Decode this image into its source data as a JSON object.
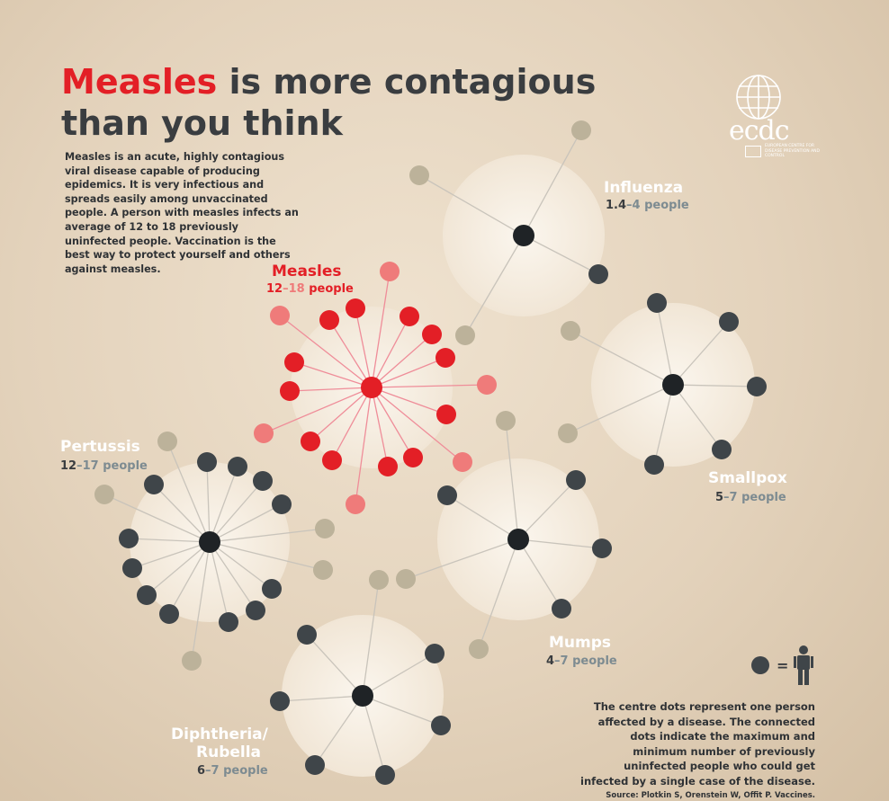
{
  "title": {
    "highlight": "Measles",
    "rest_line1": " is more contagious",
    "line2": "than you think"
  },
  "intro": "Measles is an acute, highly contagious viral disease capable of producing epidemics. It is very infectious and spreads easily among unvaccinated people. A person with measles infects an average of 12 to 18 previously uninfected people. Vaccination is the best way to protect yourself and others against measles.",
  "logo": {
    "name": "ecdc",
    "subtitle": "EUROPEAN CENTRE FOR DISEASE PREVENTION AND CONTROL",
    "icon": "globe-icon"
  },
  "colors": {
    "measles_red": "#e31f26",
    "measles_light": "#ef7b7a",
    "dark_dot": "#3f4549",
    "light_dot": "#bcb29a",
    "center_dot": "#1f2326",
    "disc": "#f6ede1",
    "gray_text": "#7d8b91"
  },
  "diseases": [
    {
      "id": "measles",
      "name": "Measles",
      "min": "12",
      "max": "18",
      "unit": " people",
      "dark": 12,
      "light": 6
    },
    {
      "id": "influenza",
      "name": "Influenza",
      "min": "1.4",
      "max": "4",
      "unit": " people",
      "dark": 1,
      "light": 3
    },
    {
      "id": "smallpox",
      "name": "Smallpox",
      "min": "5",
      "max": "7",
      "unit": " people",
      "dark": 5,
      "light": 2
    },
    {
      "id": "pertussis",
      "name": "Pertussis",
      "min": "12",
      "max": "17",
      "unit": " people",
      "dark": 12,
      "light": 5
    },
    {
      "id": "mumps",
      "name": "Mumps",
      "min": "4",
      "max": "7",
      "unit": " people",
      "dark": 4,
      "light": 3
    },
    {
      "id": "diphtheria",
      "name_line1": "Diphtheria/",
      "name_line2": "Rubella",
      "min": "6",
      "max": "7",
      "unit": " people",
      "dark": 6,
      "light": 1
    }
  ],
  "legend": {
    "equals": "=",
    "dot_icon": "center-dot-icon",
    "person_icon": "person-icon",
    "text": "The centre dots represent one person affected by a disease. The connected dots indicate the maximum and minimum number of previously uninfected people who could get infected by a single case of the disease."
  },
  "source": "Source: Plotkin S, Orenstein W, Offit P. Vaccines."
}
